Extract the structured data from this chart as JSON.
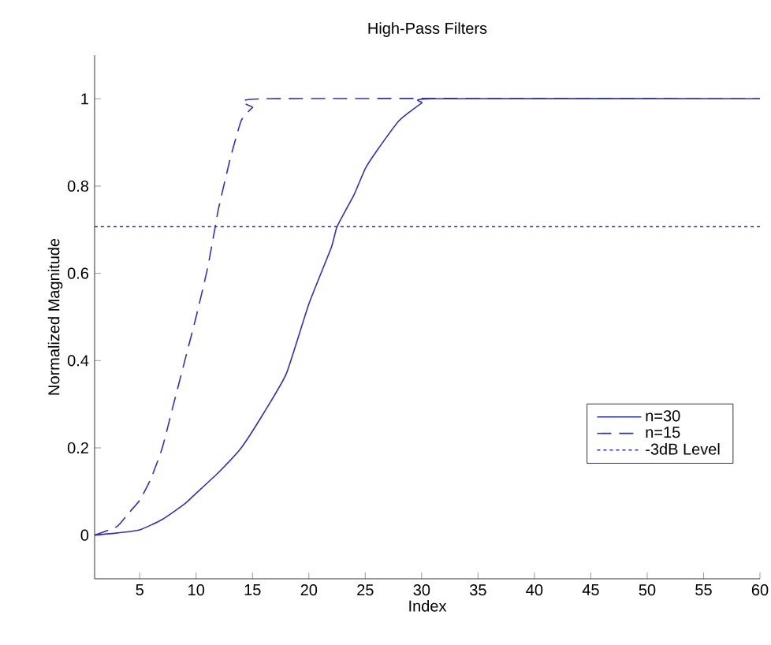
{
  "chart_data": {
    "type": "line",
    "title": "High-Pass Filters",
    "xlabel": "Index",
    "ylabel": "Normalized Magnitude",
    "xlim": [
      1,
      60
    ],
    "ylim": [
      -0.1,
      1.1
    ],
    "xticks": [
      5,
      10,
      15,
      20,
      25,
      30,
      35,
      40,
      45,
      50,
      55,
      60
    ],
    "yticks": [
      0,
      0.2,
      0.4,
      0.6,
      0.8,
      1
    ],
    "legend": "right",
    "grid": false,
    "marker": "none",
    "series": [
      {
        "name": "n=30",
        "color": "#3030c0",
        "line_style": "solid",
        "x": [
          1,
          3,
          5,
          7,
          9,
          10,
          12,
          14,
          16,
          18,
          20,
          22,
          22.5,
          24,
          25,
          26,
          28,
          30,
          31,
          60
        ],
        "values": [
          0,
          0.005,
          0.012,
          0.036,
          0.072,
          0.096,
          0.144,
          0.2,
          0.28,
          0.37,
          0.53,
          0.66,
          0.707,
          0.78,
          0.84,
          0.88,
          0.95,
          0.99,
          1,
          1
        ]
      },
      {
        "name": "n=15",
        "color": "#3030c0",
        "line_style": "dashed",
        "x": [
          1,
          3,
          4,
          5,
          6,
          7,
          8,
          9,
          10,
          11,
          11.7,
          12,
          13,
          14,
          15,
          16,
          60
        ],
        "values": [
          0,
          0.02,
          0.05,
          0.08,
          0.13,
          0.2,
          0.3,
          0.4,
          0.5,
          0.61,
          0.707,
          0.75,
          0.86,
          0.95,
          0.98,
          1,
          1
        ]
      },
      {
        "name": "-3dB Level",
        "color": "#3030c0",
        "line_style": "dotted",
        "x": [
          1,
          60
        ],
        "values": [
          0.707,
          0.707
        ]
      }
    ]
  }
}
